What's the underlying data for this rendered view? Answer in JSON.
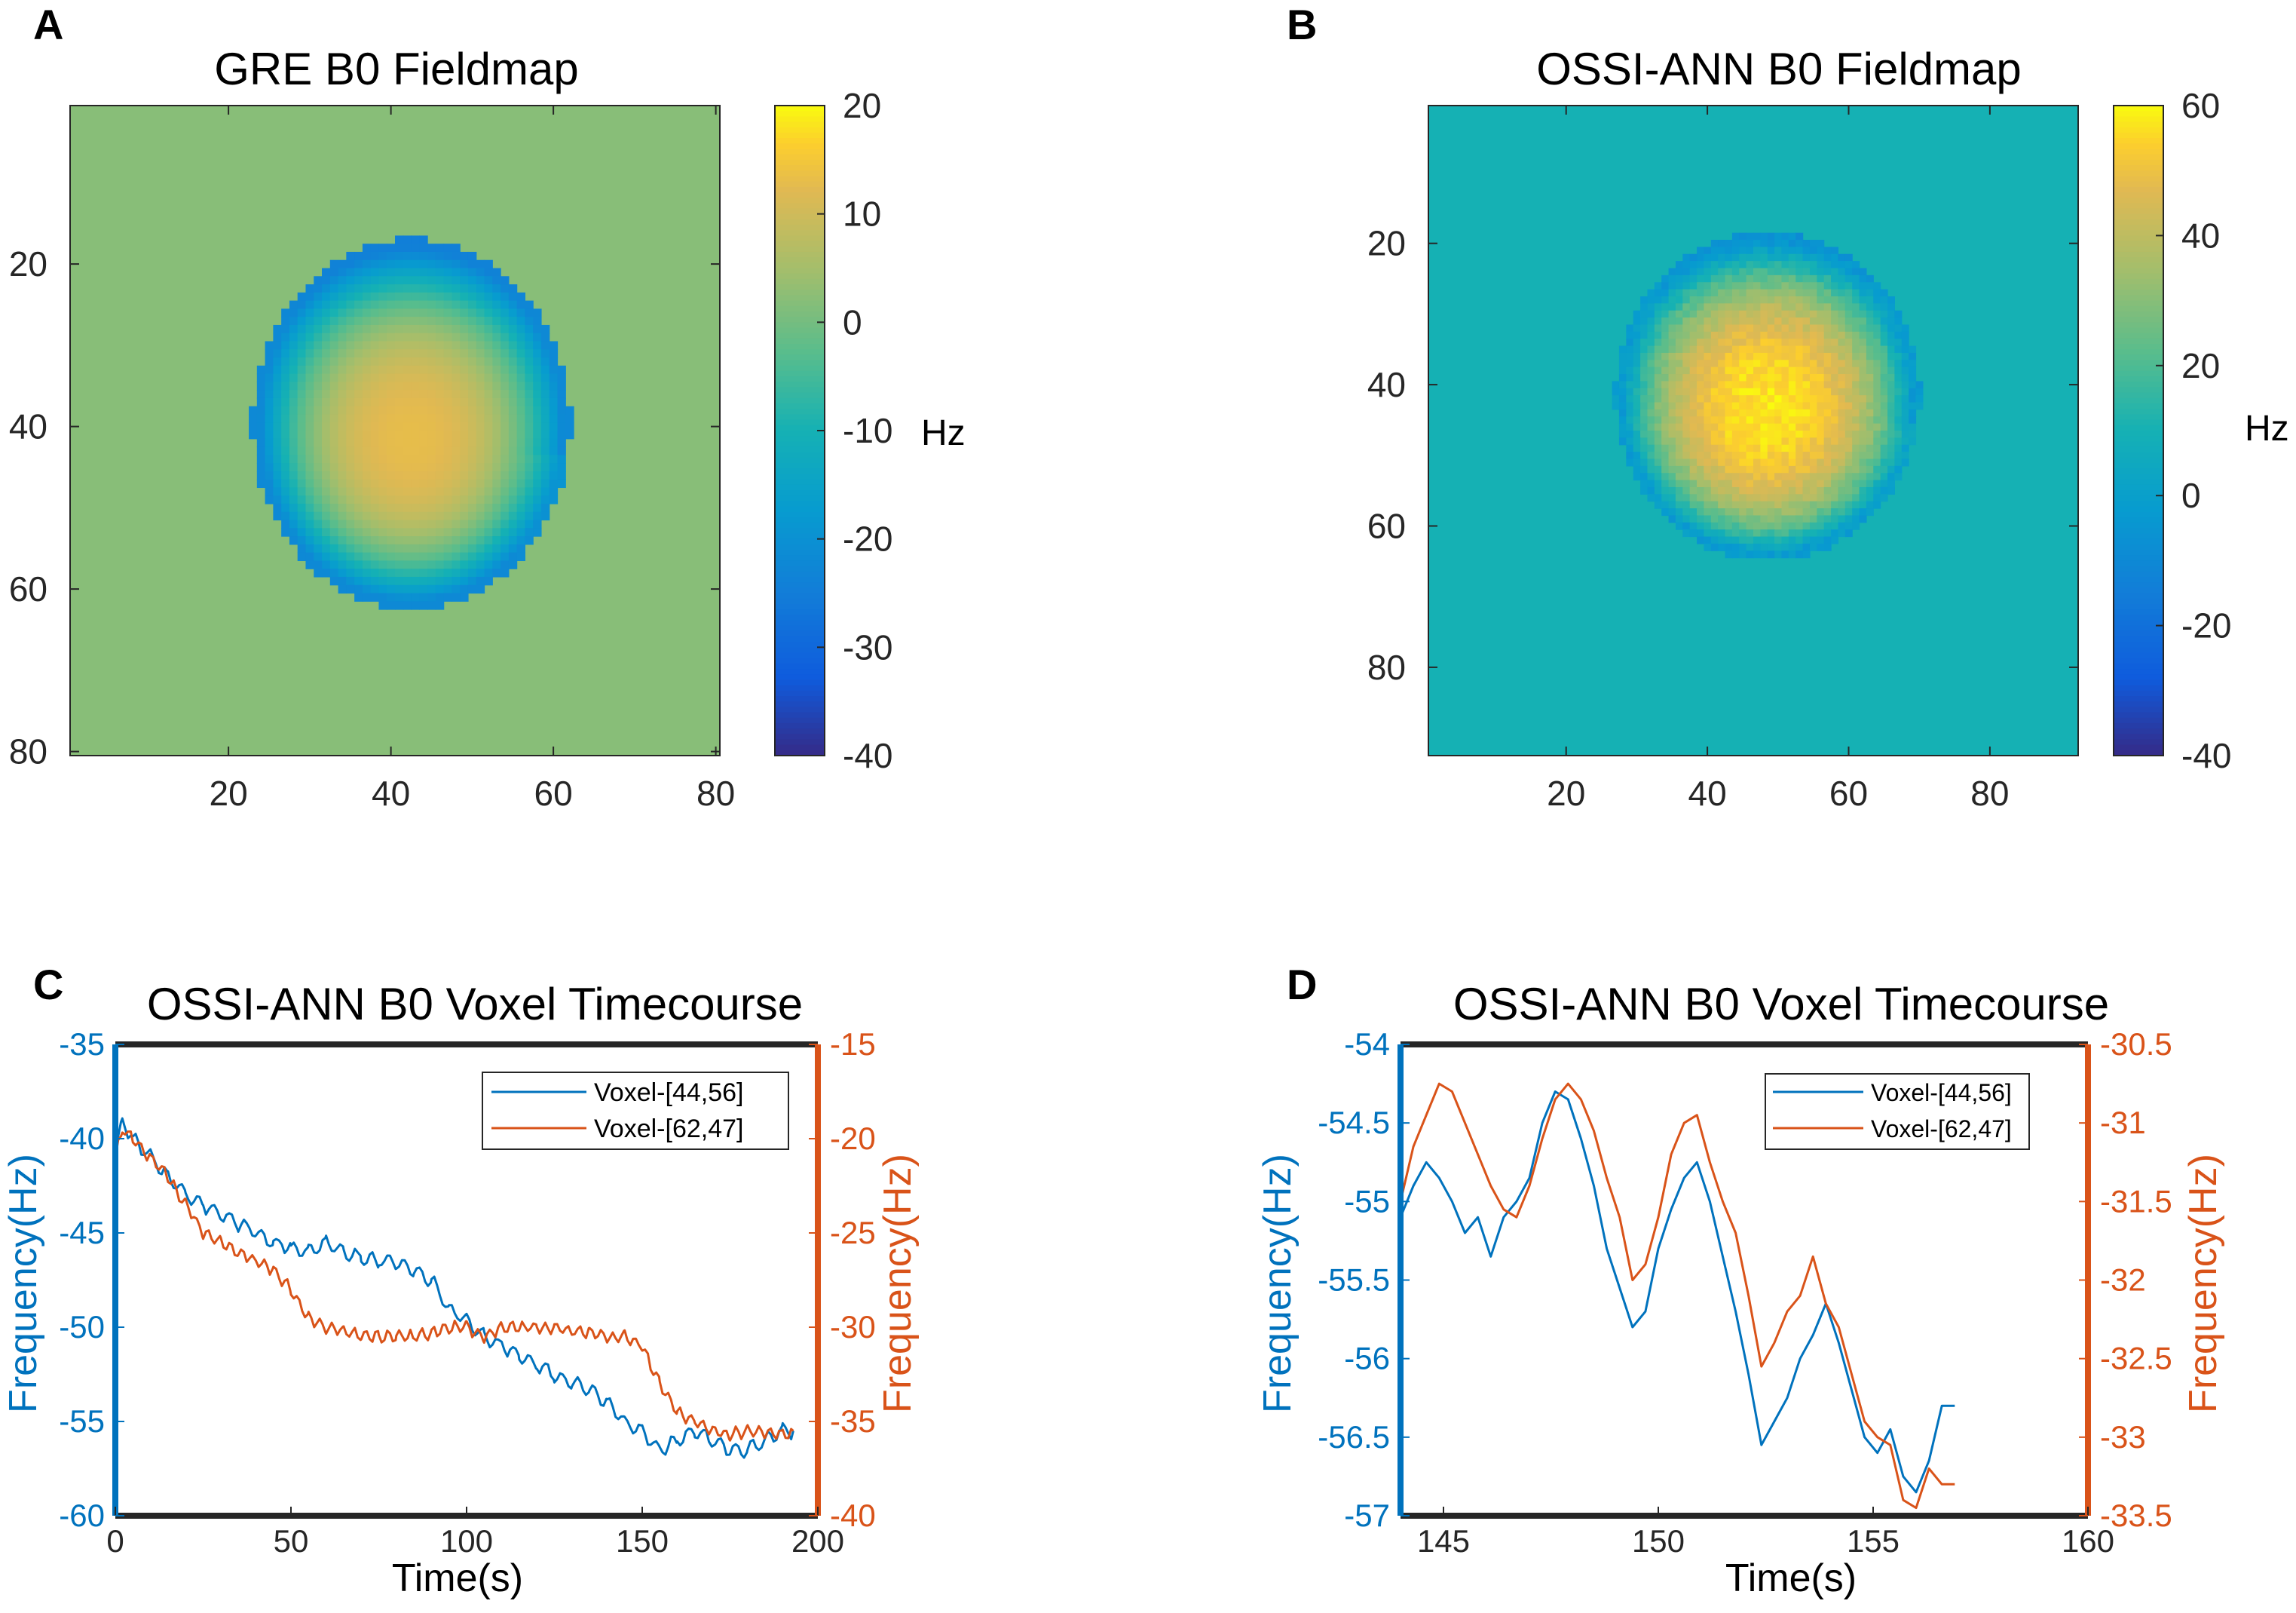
{
  "panel_letters": [
    "A",
    "B",
    "C",
    "D"
  ],
  "colors": {
    "blue_series": "#0072bd",
    "orange_series": "#d95319",
    "parula_low": "#352a87",
    "parula_high": "#f9fb0e"
  },
  "chart_data": [
    {
      "type": "heatmap",
      "panel": "A",
      "title": "GRE B0 Fieldmap",
      "colorbar": {
        "label": "Hz",
        "range": [
          -40,
          20
        ],
        "ticks": [
          20,
          10,
          0,
          -10,
          -20,
          -30,
          -40
        ]
      },
      "xlim": [
        0.5,
        80.5
      ],
      "ylim": [
        0.5,
        80.5
      ],
      "xticks": [
        20,
        40,
        60,
        80
      ],
      "yticks": [
        20,
        40,
        60,
        80
      ],
      "background_value": 2,
      "brain_mask_x": [
        23,
        62
      ],
      "brain_mask_y": [
        19,
        64
      ],
      "brain_values": {
        "center_max": 13,
        "rim_min": -22
      }
    },
    {
      "type": "heatmap",
      "panel": "B",
      "title": "OSSI-ANN B0 Fieldmap",
      "colorbar": {
        "label": "Hz",
        "range": [
          -40,
          60
        ],
        "ticks": [
          60,
          40,
          20,
          0,
          -20,
          -40
        ]
      },
      "xlim": [
        0.5,
        92.5
      ],
      "ylim": [
        0.5,
        92.5
      ],
      "xticks": [
        20,
        40,
        60,
        80
      ],
      "yticks": [
        20,
        40,
        60,
        80
      ],
      "background_value": 10,
      "brain_mask_x": [
        27,
        70
      ],
      "brain_mask_y": [
        21,
        66
      ],
      "brain_values": {
        "center_max": 57,
        "rim_min": -2
      }
    },
    {
      "type": "line",
      "panel": "C",
      "title": "OSSI-ANN B0 Voxel Timecourse",
      "xlabel": "Time(s)",
      "ylabel_left": "Frequency(Hz)",
      "ylabel_right": "Frequency(Hz)",
      "xlim": [
        0,
        200
      ],
      "ylim_left": [
        -60,
        -35
      ],
      "ylim_right": [
        -40,
        -15
      ],
      "xticks": [
        0,
        50,
        100,
        150,
        200
      ],
      "yticks_left": [
        -35,
        -40,
        -45,
        -50,
        -55,
        -60
      ],
      "yticks_right": [
        -15,
        -20,
        -25,
        -30,
        -35,
        -40
      ],
      "legend": [
        "Voxel-[44,56]",
        "Voxel-[62,47]"
      ],
      "series": [
        {
          "name": "Voxel-[44,56]",
          "axis": "left",
          "x": [
            0,
            2,
            5,
            10,
            15,
            20,
            25,
            30,
            35,
            40,
            45,
            50,
            55,
            60,
            65,
            70,
            75,
            80,
            85,
            90,
            95,
            100,
            105,
            110,
            115,
            120,
            125,
            130,
            135,
            140,
            145,
            150,
            155,
            160,
            165,
            170,
            175,
            180,
            185,
            190,
            193
          ],
          "values": [
            -41,
            -39,
            -40,
            -41,
            -42,
            -43,
            -43.5,
            -44,
            -44.5,
            -45,
            -45.5,
            -45.8,
            -46,
            -45.5,
            -46,
            -46.3,
            -46.5,
            -46.5,
            -47,
            -47.5,
            -49,
            -49.7,
            -50.5,
            -51,
            -51.5,
            -52,
            -52.5,
            -53,
            -53.3,
            -54,
            -55,
            -55.5,
            -56.5,
            -56,
            -55.5,
            -56,
            -56.5,
            -56.5,
            -56,
            -55.5,
            -55.5
          ]
        },
        {
          "name": "Voxel-[62,47]",
          "axis": "right",
          "x": [
            0,
            2,
            5,
            10,
            15,
            20,
            25,
            30,
            35,
            40,
            45,
            50,
            55,
            60,
            65,
            70,
            75,
            80,
            85,
            90,
            95,
            100,
            105,
            110,
            115,
            120,
            125,
            130,
            135,
            140,
            145,
            150,
            155,
            160,
            165,
            170,
            175,
            180,
            185,
            190,
            193
          ],
          "values": [
            -21,
            -19.5,
            -20,
            -21,
            -22,
            -23.5,
            -25,
            -25.5,
            -26,
            -26.5,
            -27,
            -28,
            -29.5,
            -30,
            -30.2,
            -30.5,
            -30.5,
            -30.5,
            -30.5,
            -30.3,
            -30,
            -30,
            -30.5,
            -30,
            -30,
            -30,
            -30,
            -30.2,
            -30.3,
            -30.5,
            -30.5,
            -31,
            -33,
            -34.5,
            -35,
            -35.5,
            -35.7,
            -35.5,
            -35.5,
            -35.7,
            -35.5
          ]
        }
      ]
    },
    {
      "type": "line",
      "panel": "D",
      "title": "OSSI-ANN B0 Voxel Timecourse",
      "xlabel": "Time(s)",
      "ylabel_left": "Frequency(Hz)",
      "ylabel_right": "Frequency(Hz)",
      "xlim": [
        144,
        160
      ],
      "ylim_left": [
        -57,
        -54
      ],
      "ylim_right": [
        -33.5,
        -30.5
      ],
      "xticks": [
        145,
        150,
        155,
        160
      ],
      "yticks_left": [
        -54,
        -54.5,
        -55,
        -55.5,
        -56,
        -56.5,
        -57
      ],
      "yticks_right": [
        -30.5,
        -31,
        -31.5,
        -32,
        -32.5,
        -33,
        -33.5
      ],
      "legend": [
        "Voxel-[44,56]",
        "Voxel-[62,47]"
      ],
      "series": [
        {
          "name": "Voxel-[44,56]",
          "axis": "left",
          "x": [
            144,
            144.3,
            144.6,
            144.9,
            145.2,
            145.5,
            145.8,
            146.1,
            146.4,
            146.7,
            147,
            147.3,
            147.6,
            147.9,
            148.2,
            148.5,
            148.8,
            149.1,
            149.4,
            149.7,
            150,
            150.3,
            150.6,
            150.9,
            151.2,
            151.5,
            151.8,
            152.1,
            152.4,
            152.7,
            153,
            153.3,
            153.6,
            153.9,
            154.2,
            154.5,
            154.8,
            155.1,
            155.4,
            155.7,
            156,
            156.3,
            156.6,
            156.9
          ],
          "values": [
            -55.1,
            -54.9,
            -54.75,
            -54.85,
            -55.0,
            -55.2,
            -55.1,
            -55.35,
            -55.1,
            -55.0,
            -54.85,
            -54.5,
            -54.3,
            -54.35,
            -54.6,
            -54.9,
            -55.3,
            -55.55,
            -55.8,
            -55.7,
            -55.3,
            -55.05,
            -54.85,
            -54.75,
            -55.0,
            -55.35,
            -55.7,
            -56.1,
            -56.55,
            -56.4,
            -56.25,
            -56.0,
            -55.85,
            -55.65,
            -55.9,
            -56.2,
            -56.5,
            -56.6,
            -56.45,
            -56.75,
            -56.85,
            -56.65,
            -56.3,
            -56.3
          ]
        },
        {
          "name": "Voxel-[62,47]",
          "axis": "right",
          "x": [
            144,
            144.3,
            144.6,
            144.9,
            145.2,
            145.5,
            145.8,
            146.1,
            146.4,
            146.7,
            147,
            147.3,
            147.6,
            147.9,
            148.2,
            148.5,
            148.8,
            149.1,
            149.4,
            149.7,
            150,
            150.3,
            150.6,
            150.9,
            151.2,
            151.5,
            151.8,
            152.1,
            152.4,
            152.7,
            153,
            153.3,
            153.6,
            153.9,
            154.2,
            154.5,
            154.8,
            155.1,
            155.4,
            155.7,
            156,
            156.3,
            156.6,
            156.9
          ],
          "values": [
            -31.5,
            -31.15,
            -30.95,
            -30.75,
            -30.8,
            -31.0,
            -31.2,
            -31.4,
            -31.55,
            -31.6,
            -31.4,
            -31.1,
            -30.85,
            -30.75,
            -30.85,
            -31.05,
            -31.35,
            -31.6,
            -32.0,
            -31.9,
            -31.6,
            -31.2,
            -31.0,
            -30.95,
            -31.25,
            -31.5,
            -31.7,
            -32.1,
            -32.55,
            -32.4,
            -32.2,
            -32.1,
            -31.85,
            -32.15,
            -32.3,
            -32.6,
            -32.9,
            -33.0,
            -33.05,
            -33.4,
            -33.45,
            -33.2,
            -33.3,
            -33.3
          ]
        }
      ]
    }
  ]
}
